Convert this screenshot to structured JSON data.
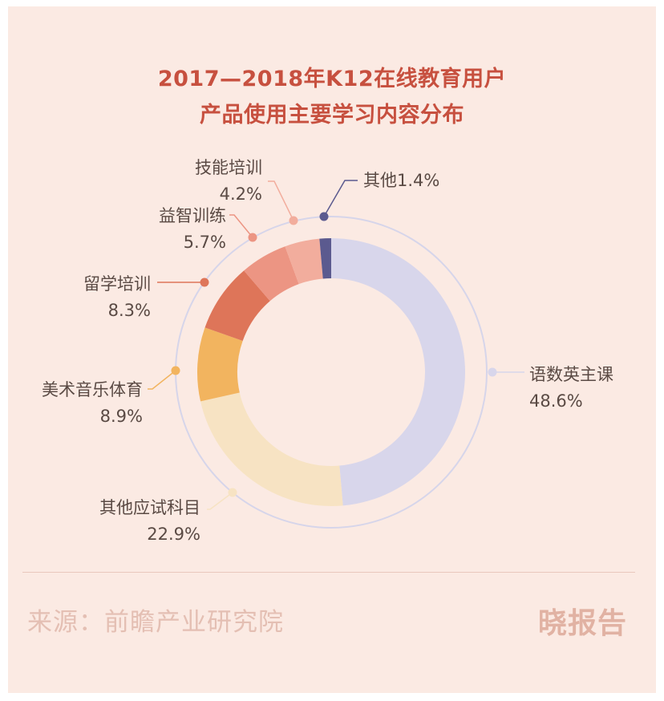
{
  "title_line1": "2017—2018年K12在线教育用户",
  "title_line2": "产品使用主要学习内容分布",
  "footer": {
    "source": "来源：前瞻产业研究院",
    "brand": "晓报告"
  },
  "chart_data": {
    "type": "pie",
    "donut": true,
    "title": "2017—2018年K12在线教育用户产品使用主要学习内容分布",
    "slices": [
      {
        "name": "语数英主课",
        "value": 48.6,
        "label": "48.6%",
        "color": "#d8d6eb"
      },
      {
        "name": "其他应试科目",
        "value": 22.9,
        "label": "22.9%",
        "color": "#f7e3c3"
      },
      {
        "name": "美术音乐体育",
        "value": 8.9,
        "label": "8.9%",
        "color": "#f2b45f"
      },
      {
        "name": "留学培训",
        "value": 8.3,
        "label": "8.3%",
        "color": "#de7559"
      },
      {
        "name": "益智训练",
        "value": 5.7,
        "label": "5.7%",
        "color": "#ec9583"
      },
      {
        "name": "技能培训",
        "value": 4.2,
        "label": "4.2%",
        "color": "#f2ad9d"
      },
      {
        "name": "其他",
        "value": 1.4,
        "label": "1.4%",
        "color": "#5b5a8f"
      }
    ]
  }
}
